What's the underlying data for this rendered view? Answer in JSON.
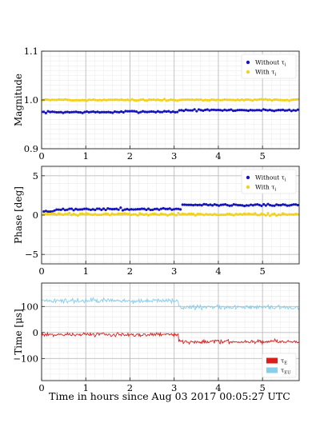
{
  "figure": {
    "shared_xlabel": "Time in hours since Aug 03 2017 00:05:27 UTC"
  },
  "colors": {
    "without": "#1515bb",
    "with": "#f2d21a",
    "red": "#dd1c1c",
    "blue": "#87ceeb"
  },
  "chart_data": [
    {
      "type": "scatter",
      "ylabel": "Magnitude",
      "xlim": [
        0,
        5.83
      ],
      "ylim": [
        0.9,
        1.1
      ],
      "xticks": [
        0,
        1,
        2,
        3,
        4,
        5
      ],
      "yticks": [
        0.9,
        1.0,
        1.1
      ],
      "ytick_labels": [
        "0.9",
        "1.0",
        "1.1"
      ],
      "grid": true,
      "legend_position": "top-right",
      "series": [
        {
          "name": "Without τi",
          "color": "#1515bb",
          "x_start": 0,
          "x_end": 5.8,
          "n": 120,
          "baseline": 0.975,
          "noise": 0.0015,
          "shifts": [
            {
              "from": 1.9,
              "to": 3.0,
              "delta": 0.001
            },
            {
              "from": 3.1,
              "to": 5.8,
              "delta": 0.004
            }
          ]
        },
        {
          "name": "With τi",
          "color": "#f2d21a",
          "x_start": 0,
          "x_end": 5.8,
          "n": 120,
          "baseline": 1.0,
          "noise": 0.0013,
          "shifts": []
        }
      ]
    },
    {
      "type": "scatter",
      "ylabel": "Phase [deg]",
      "xlim": [
        0,
        5.83
      ],
      "ylim": [
        -6.2,
        6.2
      ],
      "xticks": [
        0,
        1,
        2,
        3,
        4,
        5
      ],
      "yticks": [
        -5,
        0,
        5
      ],
      "ytick_labels": [
        "−5",
        "0",
        "5"
      ],
      "grid": true,
      "legend_position": "top-right",
      "series": [
        {
          "name": "Without τi",
          "color": "#1515bb",
          "x_start": 0.05,
          "x_end": 5.8,
          "n": 120,
          "baseline": 0.75,
          "noise": 0.12,
          "shifts": [
            {
              "from": 0,
              "to": 0.3,
              "delta": -0.3
            },
            {
              "from": 3.15,
              "to": 5.8,
              "delta": 0.55
            }
          ]
        },
        {
          "name": "With τi",
          "color": "#f2d21a",
          "x_start": 0.05,
          "x_end": 5.8,
          "n": 120,
          "baseline": 0.1,
          "noise": 0.12,
          "shifts": []
        }
      ]
    },
    {
      "type": "line",
      "ylabel": "Time [μs]",
      "xlim": [
        0,
        5.83
      ],
      "ylim": [
        -185,
        190
      ],
      "xticks": [
        0,
        1,
        2,
        3,
        4,
        5
      ],
      "yticks": [
        -100,
        0,
        100
      ],
      "ytick_labels": [
        "−100",
        "0",
        "100"
      ],
      "grid": true,
      "legend_position": "bottom-right",
      "series": [
        {
          "name": "τE",
          "color": "#dd1c1c",
          "x_start": 0,
          "x_end": 5.83,
          "n": 350,
          "baseline": -8,
          "noise": 6,
          "shifts": [
            {
              "from": 3.1,
              "to": 5.83,
              "delta": -27
            }
          ]
        },
        {
          "name": "τEU",
          "color": "#87ceeb",
          "x_start": 0,
          "x_end": 5.83,
          "n": 350,
          "baseline": 122,
          "noise": 8,
          "shifts": [
            {
              "from": 3.1,
              "to": 5.83,
              "delta": -25
            }
          ]
        }
      ]
    }
  ]
}
